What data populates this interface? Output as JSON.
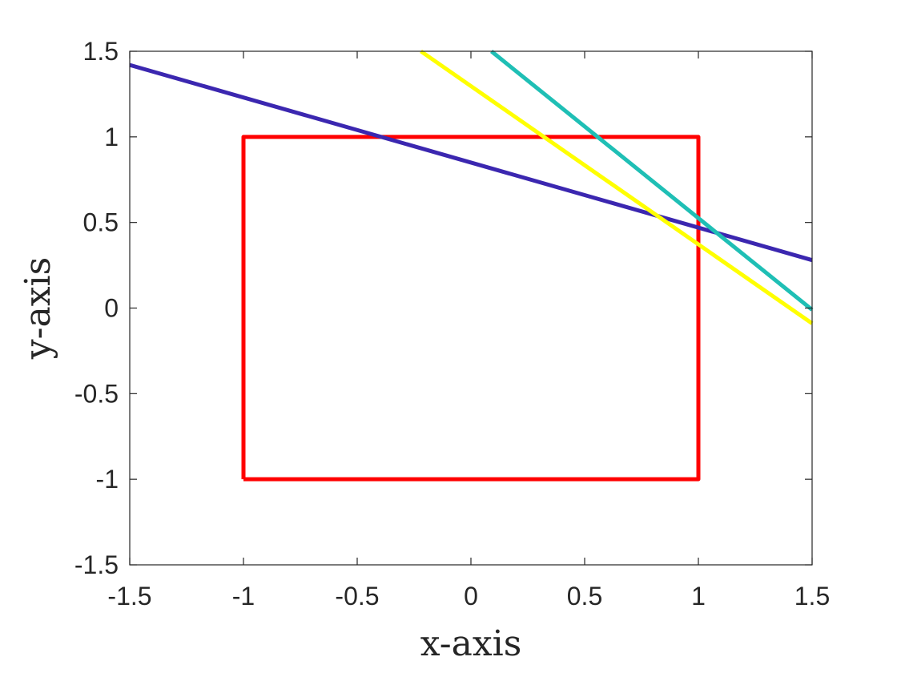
{
  "chart_data": {
    "type": "line",
    "xlabel": "x-axis",
    "ylabel": "y-axis",
    "xlim": [
      -1.5,
      1.5
    ],
    "ylim": [
      -1.5,
      1.5
    ],
    "xticks": [
      -1.5,
      -1,
      -0.5,
      0,
      0.5,
      1,
      1.5
    ],
    "yticks": [
      -1.5,
      -1,
      -0.5,
      0,
      0.5,
      1,
      1.5
    ],
    "xtick_labels": [
      "-1.5",
      "-1",
      "-0.5",
      "0",
      "0.5",
      "1",
      "1.5"
    ],
    "ytick_labels": [
      "-1.5",
      "-1",
      "-0.5",
      "0",
      "0.5",
      "1",
      "1.5"
    ],
    "grid": false,
    "series": [
      {
        "color": "#ff0000",
        "points": [
          [
            -1,
            -1
          ],
          [
            1,
            -1
          ],
          [
            1,
            1
          ],
          [
            -1,
            1
          ],
          [
            -1,
            -1
          ]
        ]
      },
      {
        "color": "#3b27b0",
        "points": [
          [
            -1.5,
            1.42
          ],
          [
            1.5,
            0.28
          ]
        ]
      },
      {
        "color": "#ffff00",
        "points": [
          [
            -0.22,
            1.5
          ],
          [
            1.5,
            -0.09
          ]
        ]
      },
      {
        "color": "#1fbfb5",
        "points": [
          [
            0.09,
            1.5
          ],
          [
            1.5,
            -0.01
          ]
        ]
      }
    ]
  }
}
